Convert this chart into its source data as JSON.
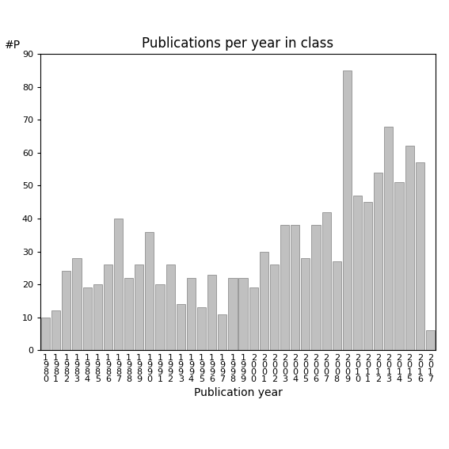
{
  "title": "Publications per year in class",
  "xlabel": "Publication year",
  "ylabel_text": "#P",
  "ylim": [
    0,
    90
  ],
  "yticks": [
    0,
    10,
    20,
    30,
    40,
    50,
    60,
    70,
    80,
    90
  ],
  "categories": [
    "1\n9\n8\n0",
    "1\n9\n8\n1",
    "1\n9\n8\n2",
    "1\n9\n8\n3",
    "1\n9\n8\n4",
    "1\n9\n8\n5",
    "1\n9\n8\n6",
    "1\n9\n8\n7",
    "1\n9\n8\n8",
    "1\n9\n8\n9",
    "1\n9\n9\n0",
    "1\n9\n9\n1",
    "1\n9\n9\n2",
    "1\n9\n9\n3",
    "1\n9\n9\n4",
    "1\n9\n9\n5",
    "1\n9\n9\n6",
    "1\n9\n9\n7",
    "1\n9\n9\n8",
    "1\n9\n9\n9",
    "2\n0\n0\n0",
    "2\n0\n0\n1",
    "2\n0\n0\n2",
    "2\n0\n0\n3",
    "2\n0\n0\n4",
    "2\n0\n0\n5",
    "2\n0\n0\n6",
    "2\n0\n0\n7",
    "2\n0\n0\n8",
    "2\n0\n0\n9",
    "2\n0\n1\n0",
    "2\n0\n1\n1",
    "2\n0\n1\n2",
    "2\n0\n1\n3",
    "2\n0\n1\n4",
    "2\n0\n1\n5",
    "2\n0\n1\n6",
    "2\n0\n1\n7"
  ],
  "values": [
    10,
    12,
    24,
    28,
    19,
    20,
    26,
    40,
    22,
    26,
    36,
    20,
    26,
    14,
    22,
    13,
    23,
    11,
    22,
    22,
    19,
    30,
    26,
    38,
    38,
    28,
    38,
    42,
    27,
    85,
    47,
    45,
    54,
    68,
    51,
    62,
    57,
    6
  ],
  "bar_color": "#c0c0c0",
  "bar_edgecolor": "#808080",
  "bg_color": "#ffffff",
  "title_fontsize": 12,
  "xlabel_fontsize": 10,
  "tick_fontsize": 8,
  "ylabel_fontsize": 10
}
